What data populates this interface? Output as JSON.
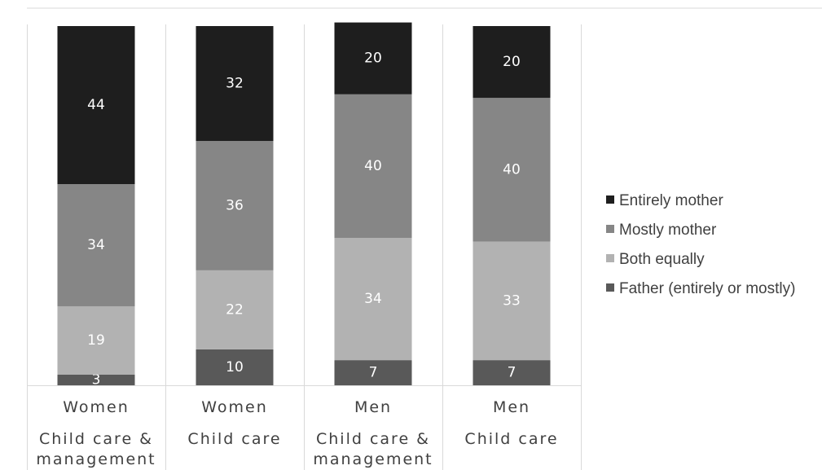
{
  "chart_data": {
    "type": "bar",
    "stacked": true,
    "categories": [
      {
        "group": "Women",
        "label": "Child care & management"
      },
      {
        "group": "Women",
        "label": "Child care"
      },
      {
        "group": "Men",
        "label": "Child care & management"
      },
      {
        "group": "Men",
        "label": "Child care"
      }
    ],
    "series": [
      {
        "name": "Father (entirely or mostly)",
        "values": [
          3,
          10,
          7,
          7
        ],
        "color": "#595959"
      },
      {
        "name": "Both equally",
        "values": [
          19,
          22,
          34,
          33
        ],
        "color": "#b2b2b2"
      },
      {
        "name": "Mostly mother",
        "values": [
          34,
          36,
          40,
          40
        ],
        "color": "#868686"
      },
      {
        "name": "Entirely mother",
        "values": [
          44,
          32,
          20,
          20
        ],
        "color": "#1e1e1e"
      }
    ],
    "legend_order": [
      "Entirely mother",
      "Mostly mother",
      "Both equally",
      "Father (entirely or mostly)"
    ],
    "legend_position": "right",
    "ylim": [
      0,
      100
    ],
    "title": "",
    "xlabel": "",
    "ylabel": "",
    "grid": "vertical category separators"
  }
}
